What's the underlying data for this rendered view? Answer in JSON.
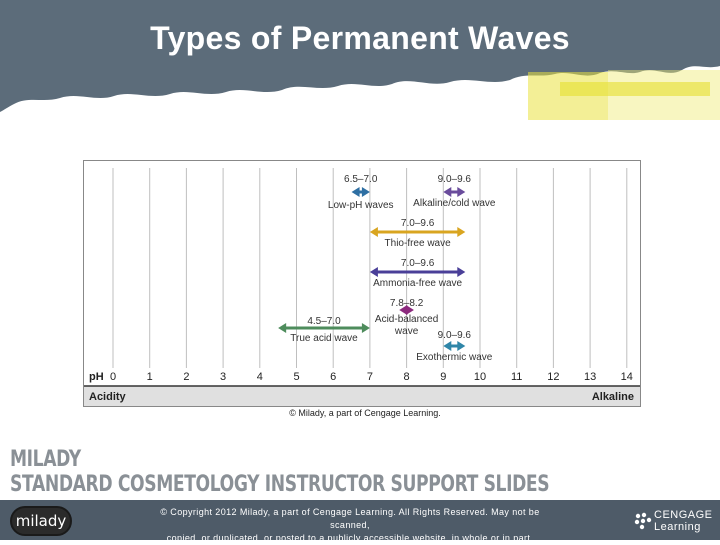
{
  "slide": {
    "title": "Types of Permanent Waves",
    "credit": "© Milady, a part of Cengage Learning.",
    "brand_line1": "MILADY",
    "brand_line2": "STANDARD COSMETOLOGY INSTRUCTOR SUPPORT SLIDES",
    "logo_text": "milady",
    "copyright_line1": "© Copyright 2012 Milady, a part of Cengage Learning. All Rights Reserved. May not be scanned,",
    "copyright_line2": "copied, or duplicated, or posted to a publicly accessible website, in whole or in part.",
    "cengage_line1": "CENGAGE",
    "cengage_line2": "Learning"
  },
  "colors": {
    "banner": "#5c6c7a",
    "highlight": "#e9e23f",
    "footer": "#4e5b68",
    "grid": "#bfbfbf",
    "axis_bar": "#e0e0e0"
  },
  "chart_data": {
    "type": "range",
    "x_axis_label": "pH",
    "x": [
      0,
      1,
      2,
      3,
      4,
      5,
      6,
      7,
      8,
      9,
      10,
      11,
      12,
      13,
      14
    ],
    "xlim": [
      0,
      14
    ],
    "left_label": "Acidity",
    "right_label": "Alkaline",
    "series": [
      {
        "range_label": "6.5–7.0",
        "name": "Low-pH waves",
        "low": 6.5,
        "high": 7.0,
        "color": "#2e6fa3"
      },
      {
        "range_label": "9.0–9.6",
        "name": "Alkaline/cold wave",
        "low": 9.0,
        "high": 9.6,
        "color": "#6a4c9c"
      },
      {
        "range_label": "7.0–9.6",
        "name": "Thio-free wave",
        "low": 7.0,
        "high": 9.6,
        "color": "#d9a520"
      },
      {
        "range_label": "7.0–9.6",
        "name": "Ammonia-free wave",
        "low": 7.0,
        "high": 9.6,
        "color": "#4a3f98"
      },
      {
        "range_label": "7.8–8.2",
        "name": "Acid-balanced wave",
        "low": 7.8,
        "high": 8.2,
        "color": "#8c2a7e"
      },
      {
        "range_label": "4.5–7.0",
        "name": "True acid wave",
        "low": 4.5,
        "high": 7.0,
        "color": "#4e8c5c"
      },
      {
        "range_label": "9.0–9.6",
        "name": "Exothermic wave",
        "low": 9.0,
        "high": 9.6,
        "color": "#2f86a8"
      }
    ]
  }
}
